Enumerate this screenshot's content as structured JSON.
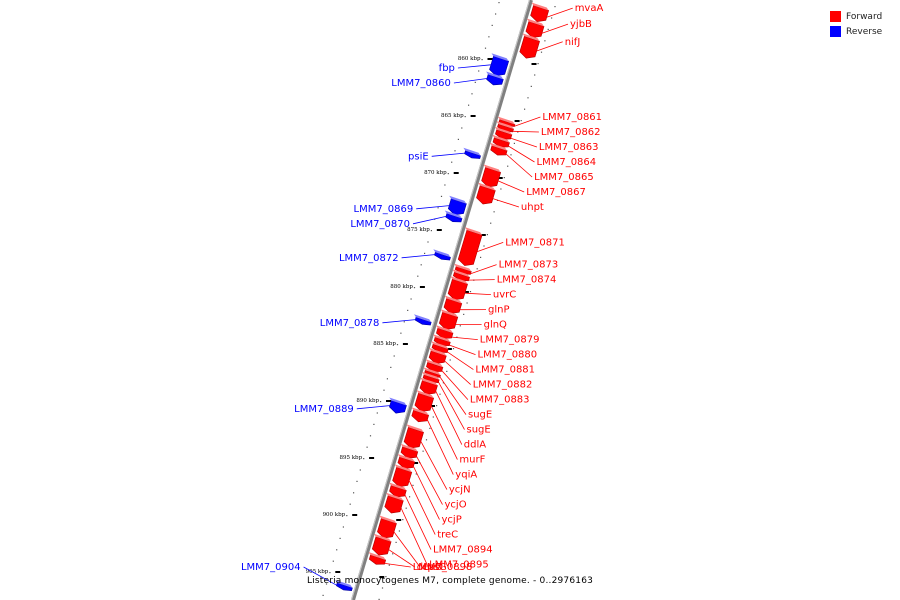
{
  "colors": {
    "forward": "#ff0000",
    "reverse": "#0000ff",
    "backbone": "#808080"
  },
  "legend": [
    {
      "label": "Forward",
      "strand": "forward"
    },
    {
      "label": "Reverse",
      "strand": "reverse"
    }
  ],
  "caption": "Listeria monocytogenes M7, complete genome. - 0..2976163",
  "ticks": [
    {
      "kbp": 860,
      "label": "860 kbp"
    },
    {
      "kbp": 865,
      "label": "865 kbp"
    },
    {
      "kbp": 870,
      "label": "870 kbp"
    },
    {
      "kbp": 875,
      "label": "875 kbp"
    },
    {
      "kbp": 880,
      "label": "880 kbp"
    },
    {
      "kbp": 885,
      "label": "885 kbp"
    },
    {
      "kbp": 890,
      "label": "890 kbp"
    },
    {
      "kbp": 895,
      "label": "895 kbp"
    },
    {
      "kbp": 900,
      "label": "900 kbp"
    },
    {
      "kbp": 905,
      "label": "905 kbp"
    }
  ],
  "genes": [
    {
      "name": "mvaA",
      "strand": "forward",
      "start": 855.2,
      "end": 856.4
    },
    {
      "name": "yjbB",
      "strand": "forward",
      "start": 856.6,
      "end": 857.8
    },
    {
      "name": "nifJ",
      "strand": "forward",
      "start": 857.9,
      "end": 859.6
    },
    {
      "name": "fbp",
      "strand": "reverse",
      "start": 860.3,
      "end": 861.8
    },
    {
      "name": "LMM7_0860",
      "strand": "reverse",
      "start": 861.9,
      "end": 862.6
    },
    {
      "name": "LMM7_0861",
      "strand": "forward",
      "start": 865.2,
      "end": 865.5
    },
    {
      "name": "LMM7_0862",
      "strand": "forward",
      "start": 865.6,
      "end": 866.0
    },
    {
      "name": "LMM7_0863",
      "strand": "forward",
      "start": 866.1,
      "end": 866.7
    },
    {
      "name": "LMM7_0864",
      "strand": "forward",
      "start": 866.8,
      "end": 867.4
    },
    {
      "name": "LMM7_0865",
      "strand": "forward",
      "start": 867.5,
      "end": 868.1
    },
    {
      "name": "psiE",
      "strand": "reverse",
      "start": 868.6,
      "end": 869.0
    },
    {
      "name": "LMM7_0867",
      "strand": "forward",
      "start": 869.4,
      "end": 870.9
    },
    {
      "name": "uhpt",
      "strand": "forward",
      "start": 871.0,
      "end": 872.4
    },
    {
      "name": "LMM7_0869",
      "strand": "reverse",
      "start": 872.8,
      "end": 874.0
    },
    {
      "name": "LMM7_0870",
      "strand": "reverse",
      "start": 874.1,
      "end": 874.6
    },
    {
      "name": "LMM7_0871",
      "strand": "forward",
      "start": 874.9,
      "end": 877.8
    },
    {
      "name": "LMM7_0872",
      "strand": "reverse",
      "start": 877.5,
      "end": 877.9
    },
    {
      "name": "LMM7_0873",
      "strand": "forward",
      "start": 878.1,
      "end": 878.5
    },
    {
      "name": "LMM7_0874",
      "strand": "forward",
      "start": 878.6,
      "end": 879.1
    },
    {
      "name": "uvrC",
      "strand": "forward",
      "start": 879.2,
      "end": 880.8
    },
    {
      "name": "glnP",
      "strand": "forward",
      "start": 880.9,
      "end": 882.0
    },
    {
      "name": "glnQ",
      "strand": "forward",
      "start": 882.1,
      "end": 883.4
    },
    {
      "name": "LMM7_0878",
      "strand": "reverse",
      "start": 883.2,
      "end": 883.6
    },
    {
      "name": "LMM7_0879",
      "strand": "forward",
      "start": 883.5,
      "end": 884.2
    },
    {
      "name": "LMM7_0880",
      "strand": "forward",
      "start": 884.3,
      "end": 884.8
    },
    {
      "name": "LMM7_0881",
      "strand": "forward",
      "start": 884.9,
      "end": 885.4
    },
    {
      "name": "LMM7_0882",
      "strand": "forward",
      "start": 885.5,
      "end": 886.4
    },
    {
      "name": "LMM7_0883",
      "strand": "forward",
      "start": 886.5,
      "end": 887.1
    },
    {
      "name": "sugE",
      "strand": "forward",
      "start": 887.2,
      "end": 887.5
    },
    {
      "name": "sugE",
      "strand": "forward",
      "start": 887.6,
      "end": 888.0
    },
    {
      "name": "ddlA",
      "strand": "forward",
      "start": 888.1,
      "end": 889.1
    },
    {
      "name": "murF",
      "strand": "forward",
      "start": 889.2,
      "end": 890.6
    },
    {
      "name": "LMM7_0889",
      "strand": "reverse",
      "start": 890.5,
      "end": 891.4
    },
    {
      "name": "yqiA",
      "strand": "forward",
      "start": 890.7,
      "end": 891.5
    },
    {
      "name": "ycjN",
      "strand": "forward",
      "start": 892.2,
      "end": 893.8
    },
    {
      "name": "ycjO",
      "strand": "forward",
      "start": 893.9,
      "end": 894.7
    },
    {
      "name": "ycjP",
      "strand": "forward",
      "start": 894.8,
      "end": 895.6
    },
    {
      "name": "treC",
      "strand": "forward",
      "start": 895.7,
      "end": 897.2
    },
    {
      "name": "LMM7_0894",
      "strand": "forward",
      "start": 897.3,
      "end": 898.1
    },
    {
      "name": "LMM7_0895",
      "strand": "forward",
      "start": 898.2,
      "end": 899.5
    },
    {
      "name": "cpsG",
      "strand": "forward",
      "start": 900.2,
      "end": 901.7
    },
    {
      "name": "deaD",
      "strand": "forward",
      "start": 901.8,
      "end": 903.2
    },
    {
      "name": "LMM7_0898",
      "strand": "forward",
      "start": 903.4,
      "end": 904.0
    },
    {
      "name": "LMM7_0904",
      "strand": "reverse",
      "start": 906.5,
      "end": 906.9
    }
  ]
}
